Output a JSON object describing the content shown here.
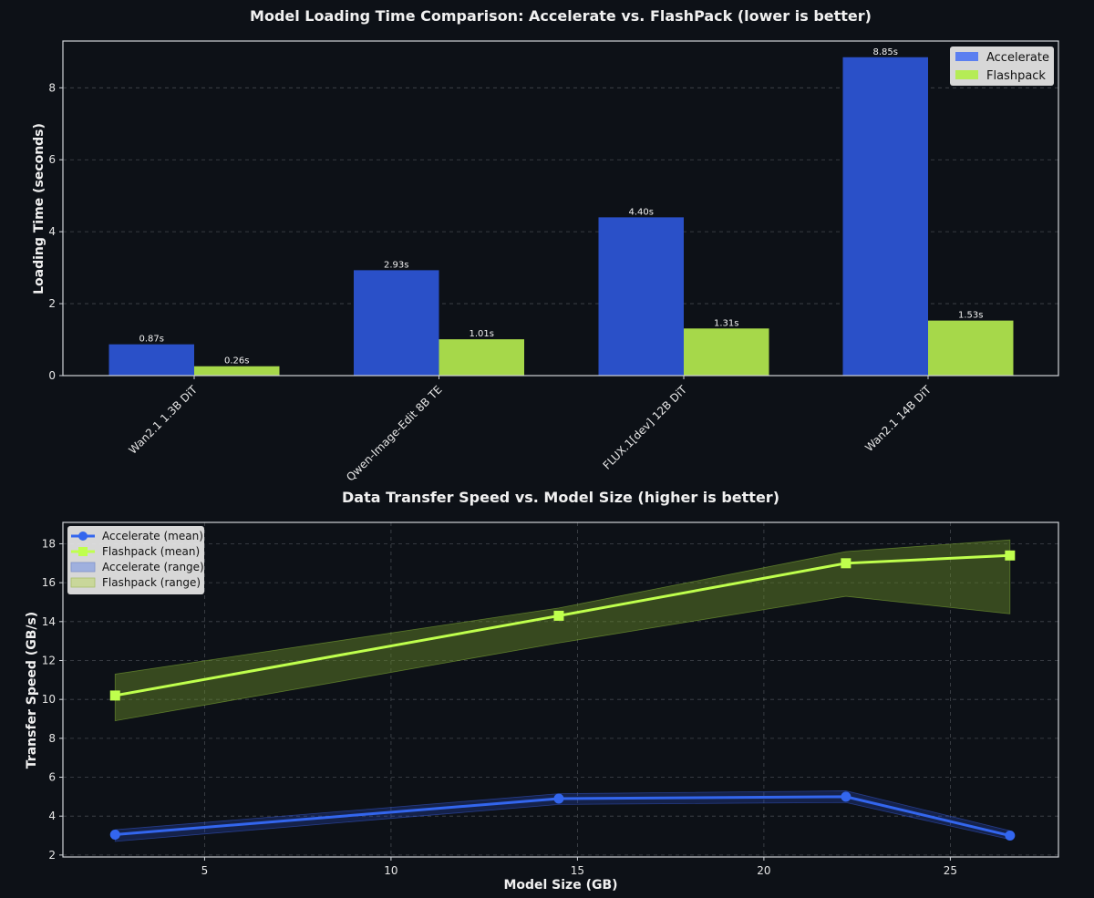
{
  "colors": {
    "background": "#0d1117",
    "accelerate": "#2a50c8",
    "accelerate_line": "#3366ee",
    "flashpack": "#a6d84a",
    "flashpack_line": "#bfff4d"
  },
  "chart_data": [
    {
      "type": "bar",
      "title": "Model Loading Time Comparison: Accelerate vs. FlashPack (lower is better)",
      "xlabel": "",
      "ylabel": "Loading Time (seconds)",
      "categories": [
        "Wan2.1 1.3B DiT",
        "Qwen-Image-Edit 8B TE",
        "FLUX.1[dev] 12B DiT",
        "Wan2.1 14B DiT"
      ],
      "series": [
        {
          "name": "Accelerate",
          "values": [
            0.87,
            2.93,
            4.4,
            8.85
          ],
          "labels": [
            "0.87s",
            "2.93s",
            "4.40s",
            "8.85s"
          ]
        },
        {
          "name": "Flashpack",
          "values": [
            0.26,
            1.01,
            1.31,
            1.53
          ],
          "labels": [
            "0.26s",
            "1.01s",
            "1.31s",
            "1.53s"
          ]
        }
      ],
      "ylim": [
        0,
        9.3
      ],
      "yticks": [
        "0",
        "2",
        "4",
        "6",
        "8"
      ],
      "grid": true,
      "legend": "top-right"
    },
    {
      "type": "line",
      "title": "Data Transfer Speed vs. Model Size (higher is better)",
      "xlabel": "Model Size (GB)",
      "ylabel": "Transfer Speed (GB/s)",
      "x": [
        2.6,
        14.5,
        22.2,
        26.6
      ],
      "series": [
        {
          "name": "Accelerate (mean)",
          "values": [
            3.05,
            4.9,
            5.0,
            3.0
          ]
        },
        {
          "name": "Flashpack (mean)",
          "values": [
            10.2,
            14.3,
            17.0,
            17.4
          ]
        }
      ],
      "ranges": [
        {
          "name": "Accelerate (range)",
          "low": [
            2.7,
            4.6,
            4.7,
            2.8
          ],
          "high": [
            3.3,
            5.15,
            5.3,
            3.25
          ]
        },
        {
          "name": "Flashpack (range)",
          "low": [
            8.9,
            12.9,
            15.3,
            14.4
          ],
          "high": [
            11.3,
            14.7,
            17.6,
            18.2
          ]
        }
      ],
      "xlim": [
        1.2,
        27.9
      ],
      "ylim": [
        1.9,
        19.1
      ],
      "xticks": [
        "5",
        "10",
        "15",
        "20",
        "25"
      ],
      "yticks": [
        "2",
        "4",
        "6",
        "8",
        "10",
        "12",
        "14",
        "16",
        "18"
      ],
      "grid": true,
      "legend": "top-left"
    }
  ]
}
